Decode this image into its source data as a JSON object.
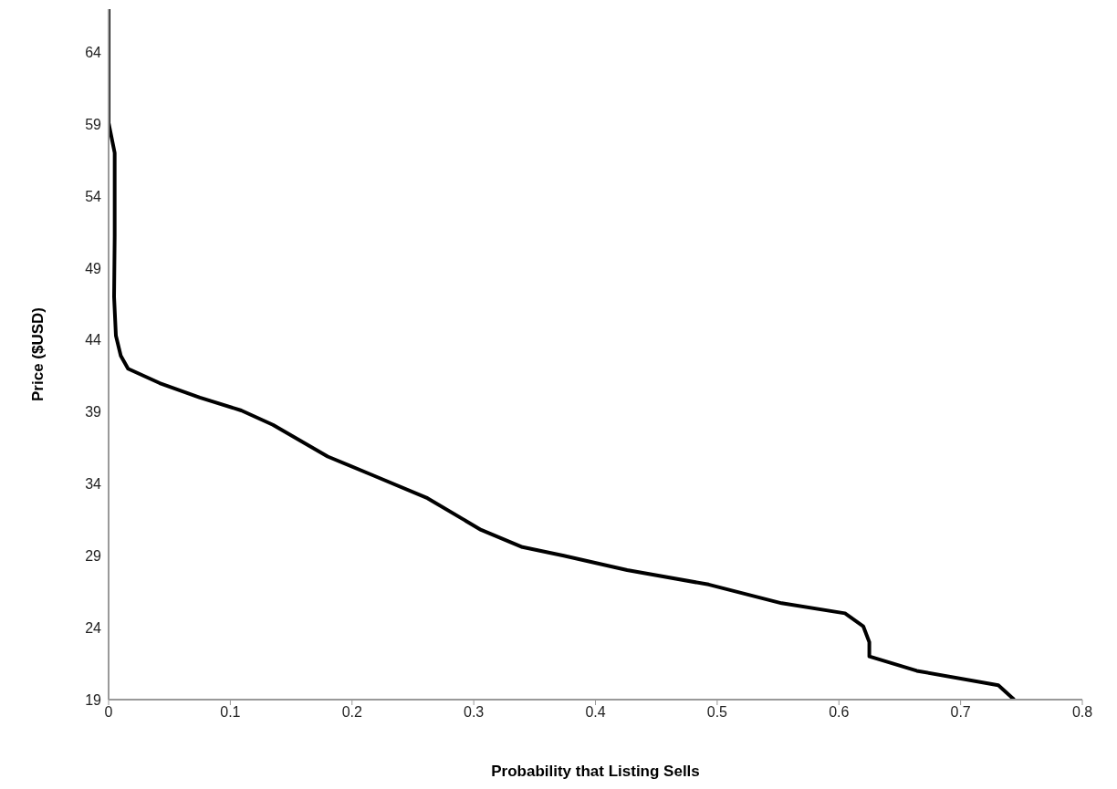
{
  "chart_data": {
    "type": "line",
    "xlabel": "Probability that Listing Sells",
    "ylabel": "Price ($USD)",
    "xlim": [
      0,
      0.8
    ],
    "xticks": [
      0,
      0.1,
      0.2,
      0.3,
      0.4,
      0.5,
      0.6,
      0.7,
      0.8
    ],
    "ylim": [
      19,
      67
    ],
    "yticks": [
      19,
      24,
      29,
      34,
      39,
      44,
      49,
      54,
      59,
      64
    ],
    "grid": false,
    "marker": "none",
    "line_style": "solid",
    "series": [
      {
        "color": "#000000",
        "x": [
          0,
          0,
          0.005,
          0.005,
          0.0045,
          0.006,
          0.01,
          0.016,
          0.042,
          0.075,
          0.109,
          0.135,
          0.18,
          0.217,
          0.262,
          0.306,
          0.34,
          0.374,
          0.426,
          0.493,
          0.553,
          0.605,
          0.62,
          0.625,
          0.625,
          0.664,
          0.731,
          0.744
        ],
        "values": [
          67,
          59.1,
          57,
          51.2,
          47,
          44.3,
          42.9,
          42,
          41,
          40,
          39.1,
          38.1,
          35.9,
          34.6,
          33,
          30.8,
          29.6,
          29,
          28,
          27,
          25.7,
          25,
          24.1,
          23,
          22,
          21,
          20,
          19
        ]
      }
    ]
  }
}
